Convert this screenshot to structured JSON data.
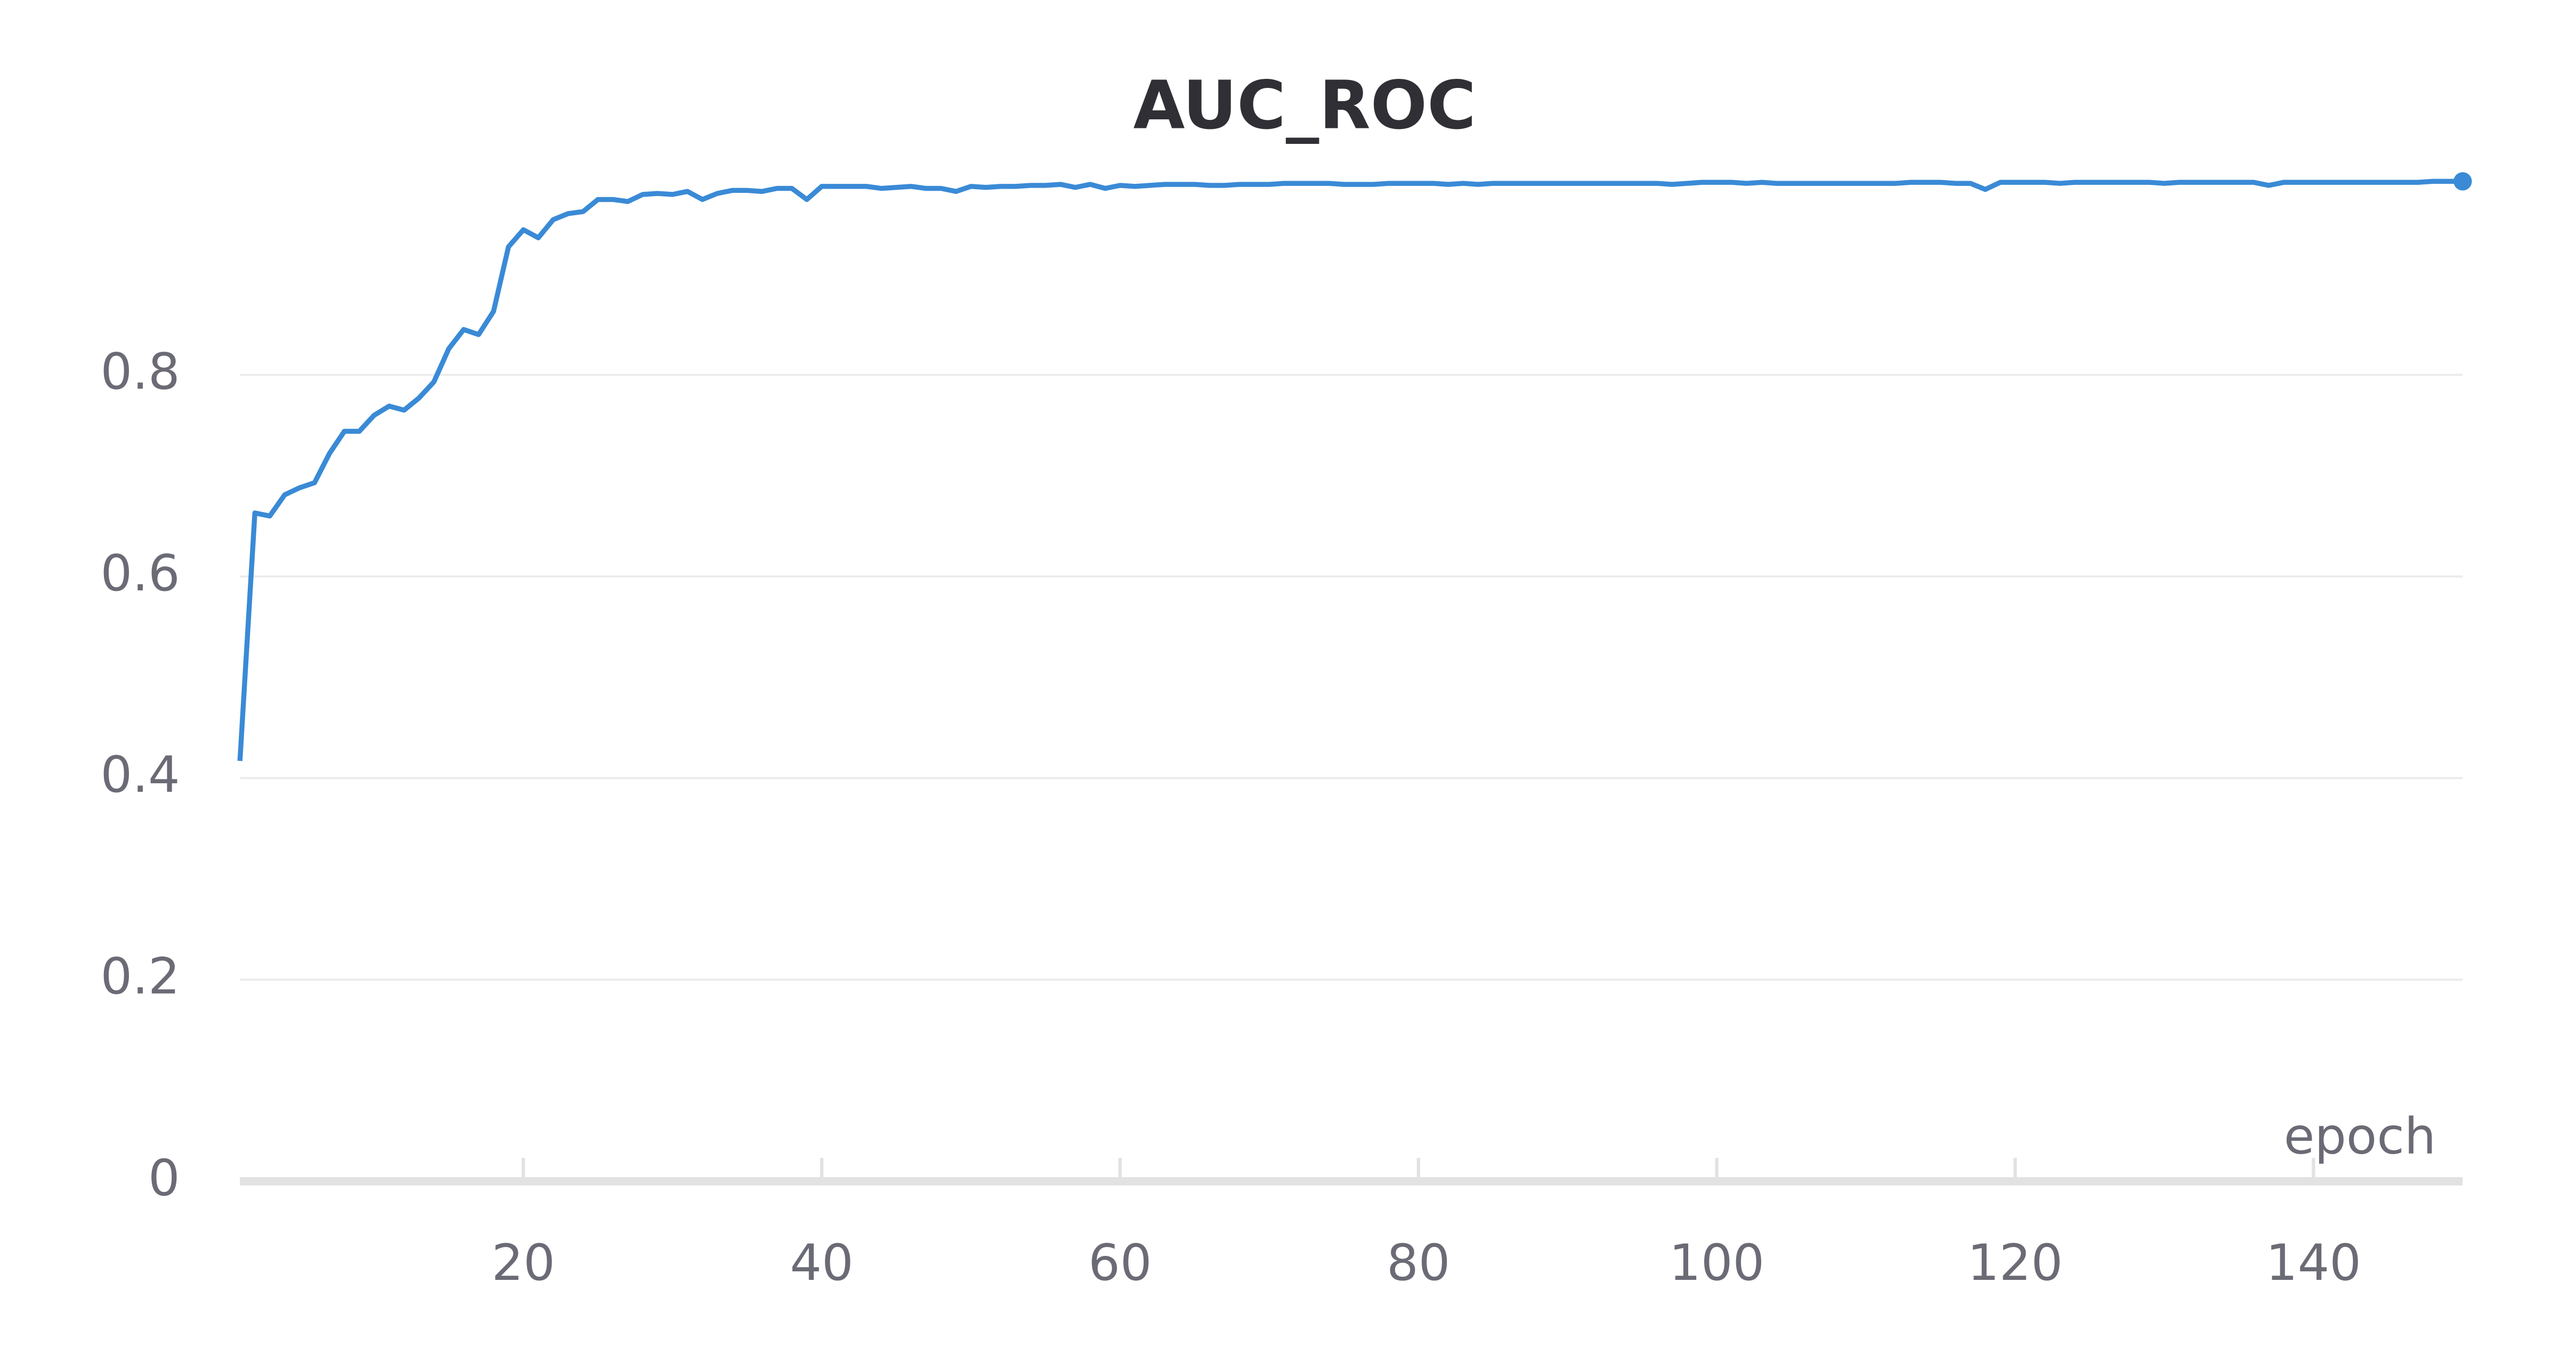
{
  "chart_data": {
    "type": "line",
    "title": "AUC_ROC",
    "x_label": "epoch",
    "x": [
      1,
      2,
      3,
      4,
      5,
      6,
      7,
      8,
      9,
      10,
      11,
      12,
      13,
      14,
      15,
      16,
      17,
      18,
      19,
      20,
      21,
      22,
      23,
      24,
      25,
      26,
      27,
      28,
      29,
      30,
      31,
      32,
      33,
      34,
      35,
      36,
      37,
      38,
      39,
      40,
      41,
      42,
      43,
      44,
      45,
      46,
      47,
      48,
      49,
      50,
      51,
      52,
      53,
      54,
      55,
      56,
      57,
      58,
      59,
      60,
      61,
      62,
      63,
      64,
      65,
      66,
      67,
      68,
      69,
      70,
      71,
      72,
      73,
      74,
      75,
      76,
      77,
      78,
      79,
      80,
      81,
      82,
      83,
      84,
      85,
      86,
      87,
      88,
      89,
      90,
      91,
      92,
      93,
      94,
      95,
      96,
      97,
      98,
      99,
      100,
      101,
      102,
      103,
      104,
      105,
      106,
      107,
      108,
      109,
      110,
      111,
      112,
      113,
      114,
      115,
      116,
      117,
      118,
      119,
      120,
      121,
      122,
      123,
      124,
      125,
      126,
      127,
      128,
      129,
      130,
      131,
      132,
      133,
      134,
      135,
      136,
      137,
      138,
      139,
      140,
      141,
      142,
      143,
      144,
      145,
      146,
      147,
      148,
      149,
      150
    ],
    "values": [
      0.417,
      0.663,
      0.66,
      0.681,
      0.688,
      0.693,
      0.722,
      0.744,
      0.744,
      0.76,
      0.769,
      0.765,
      0.777,
      0.793,
      0.826,
      0.845,
      0.84,
      0.863,
      0.927,
      0.944,
      0.936,
      0.954,
      0.96,
      0.962,
      0.974,
      0.974,
      0.972,
      0.979,
      0.98,
      0.979,
      0.982,
      0.974,
      0.98,
      0.983,
      0.983,
      0.982,
      0.985,
      0.985,
      0.974,
      0.987,
      0.987,
      0.987,
      0.987,
      0.985,
      0.986,
      0.987,
      0.985,
      0.985,
      0.982,
      0.987,
      0.986,
      0.987,
      0.987,
      0.988,
      0.988,
      0.989,
      0.986,
      0.989,
      0.985,
      0.988,
      0.987,
      0.988,
      0.989,
      0.989,
      0.989,
      0.988,
      0.988,
      0.989,
      0.989,
      0.989,
      0.99,
      0.99,
      0.99,
      0.99,
      0.989,
      0.989,
      0.989,
      0.99,
      0.99,
      0.99,
      0.99,
      0.989,
      0.99,
      0.989,
      0.99,
      0.99,
      0.99,
      0.99,
      0.99,
      0.99,
      0.99,
      0.99,
      0.99,
      0.99,
      0.99,
      0.99,
      0.989,
      0.99,
      0.991,
      0.991,
      0.991,
      0.99,
      0.991,
      0.99,
      0.99,
      0.99,
      0.99,
      0.99,
      0.99,
      0.99,
      0.99,
      0.99,
      0.991,
      0.991,
      0.991,
      0.99,
      0.99,
      0.984,
      0.991,
      0.991,
      0.991,
      0.991,
      0.99,
      0.991,
      0.991,
      0.991,
      0.991,
      0.991,
      0.991,
      0.99,
      0.991,
      0.991,
      0.991,
      0.991,
      0.991,
      0.991,
      0.988,
      0.991,
      0.991,
      0.991,
      0.991,
      0.991,
      0.991,
      0.991,
      0.991,
      0.991,
      0.991,
      0.992,
      0.992,
      0.992
    ],
    "color": "#3a8ad6",
    "xlim": [
      1,
      150
    ],
    "xticks": [
      20,
      40,
      60,
      80,
      100,
      120,
      140
    ],
    "ylim": [
      0,
      1
    ],
    "yticks": [
      0,
      0.2,
      0.4,
      0.6,
      0.8
    ],
    "grid": true
  }
}
